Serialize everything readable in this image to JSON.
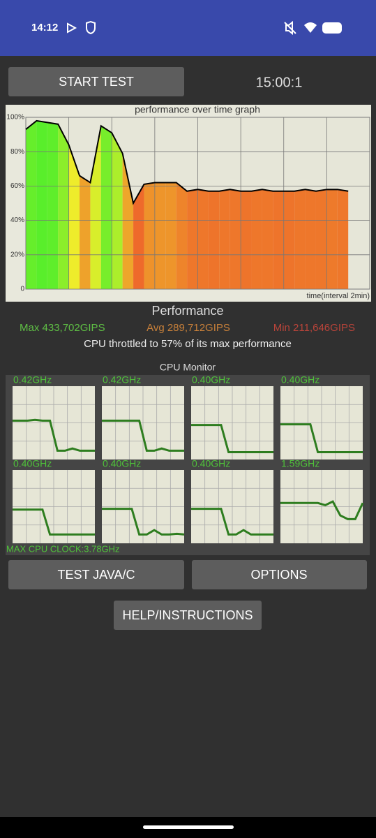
{
  "status_bar": {
    "time": "14:12"
  },
  "buttons": {
    "start": "START TEST",
    "java": "TEST JAVA/C",
    "options": "OPTIONS",
    "help": "HELP/INSTRUCTIONS"
  },
  "timer": "15:00:1",
  "chart_data": {
    "type": "line",
    "title": "performance over time graph",
    "x_label": "time(interval 2min)",
    "x": [
      0,
      0.5,
      1,
      1.5,
      2,
      2.5,
      3,
      3.5,
      4,
      4.5,
      5,
      5.5,
      6,
      6.5,
      7,
      7.5,
      8,
      8.5,
      9,
      9.5,
      10,
      10.5,
      11,
      11.5,
      12,
      12.5,
      13,
      13.5,
      14,
      14.5,
      15
    ],
    "series": [
      {
        "color": "#000000",
        "values": [
          93,
          98,
          97,
          96,
          84,
          66,
          62,
          95,
          91,
          79,
          50,
          61,
          62,
          62,
          62,
          57,
          58,
          57,
          57,
          58,
          57,
          57,
          58,
          57,
          57,
          57,
          58,
          57,
          58,
          58,
          57
        ]
      }
    ],
    "xlim": [
      0,
      16
    ],
    "xticks": [
      0,
      2,
      4,
      6,
      8,
      10,
      12,
      14,
      16
    ],
    "ylim": [
      0,
      100
    ],
    "yticks": [
      0,
      {
        "value": 20,
        "label": "20%"
      },
      {
        "value": 40,
        "label": "40%"
      },
      {
        "value": 60,
        "label": "60%"
      },
      {
        "value": 80,
        "label": "80%"
      },
      {
        "value": 100,
        "label": "100%"
      }
    ],
    "grid": true
  },
  "stats": {
    "title": "Performance",
    "max": "Max 433,702GIPS",
    "avg": "Avg 289,712GIPS",
    "min": "Min 211,646GIPS",
    "throttle": "CPU throttled to 57% of its max performance"
  },
  "cpu_monitor": {
    "title": "CPU Monitor",
    "max_clock": "MAX CPU CLOCK:3.78GHz",
    "color": "#2e7d1f",
    "ylim": [
      0,
      100
    ],
    "cores": [
      {
        "label": "0.42GHz",
        "values": [
          53,
          53,
          53,
          54,
          53,
          53,
          12,
          12,
          15,
          12,
          12,
          12
        ]
      },
      {
        "label": "0.42GHz",
        "values": [
          53,
          53,
          53,
          53,
          53,
          53,
          12,
          12,
          15,
          12,
          12,
          12
        ]
      },
      {
        "label": "0.40GHz",
        "values": [
          47,
          47,
          47,
          47,
          47,
          10,
          10,
          10,
          10,
          10,
          10,
          10
        ]
      },
      {
        "label": "0.40GHz",
        "values": [
          48,
          48,
          48,
          48,
          48,
          10,
          10,
          10,
          10,
          10,
          10,
          10
        ]
      },
      {
        "label": "0.40GHz",
        "values": [
          46,
          46,
          46,
          46,
          46,
          12,
          12,
          12,
          12,
          12,
          12,
          12
        ]
      },
      {
        "label": "0.40GHz",
        "values": [
          47,
          47,
          47,
          47,
          47,
          12,
          12,
          18,
          12,
          12,
          13,
          12
        ]
      },
      {
        "label": "0.40GHz",
        "values": [
          47,
          47,
          47,
          47,
          47,
          12,
          12,
          18,
          12,
          12,
          12,
          12
        ]
      },
      {
        "label": "1.59GHz",
        "values": [
          55,
          55,
          55,
          55,
          55,
          55,
          52,
          57,
          38,
          33,
          33,
          55
        ]
      }
    ]
  }
}
